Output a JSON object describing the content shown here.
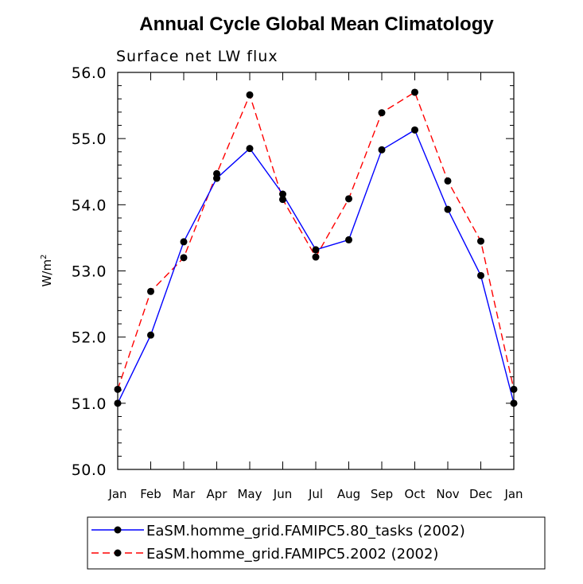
{
  "chart_data": {
    "type": "line",
    "title": "Annual Cycle Global Mean Climatology",
    "subtitle": "Surface net LW flux",
    "ylabel_base": "W/m",
    "ylabel_sup": "2",
    "xlabel": "",
    "categories": [
      "Jan",
      "Feb",
      "Mar",
      "Apr",
      "May",
      "Jun",
      "Jul",
      "Aug",
      "Sep",
      "Oct",
      "Nov",
      "Dec",
      "Jan"
    ],
    "ylim": [
      50.0,
      56.0
    ],
    "yticks": [
      "50.0",
      "51.0",
      "52.0",
      "53.0",
      "54.0",
      "55.0",
      "56.0"
    ],
    "grid": false,
    "legend_position": "bottom",
    "series": [
      {
        "name": "EaSM.homme_grid.FAMIPC5.80_tasks (2002)",
        "color": "#0000ff",
        "dash": "solid",
        "values": [
          51.0,
          52.03,
          53.44,
          54.4,
          54.85,
          54.16,
          53.32,
          53.47,
          54.83,
          55.13,
          53.93,
          52.93,
          51.0
        ]
      },
      {
        "name": "EaSM.homme_grid.FAMIPC5.2002 (2002)",
        "color": "#ff0000",
        "dash": "dashed",
        "values": [
          51.21,
          52.69,
          53.2,
          54.47,
          55.66,
          54.08,
          53.21,
          54.09,
          55.39,
          55.7,
          54.36,
          53.45,
          51.21
        ]
      }
    ]
  }
}
